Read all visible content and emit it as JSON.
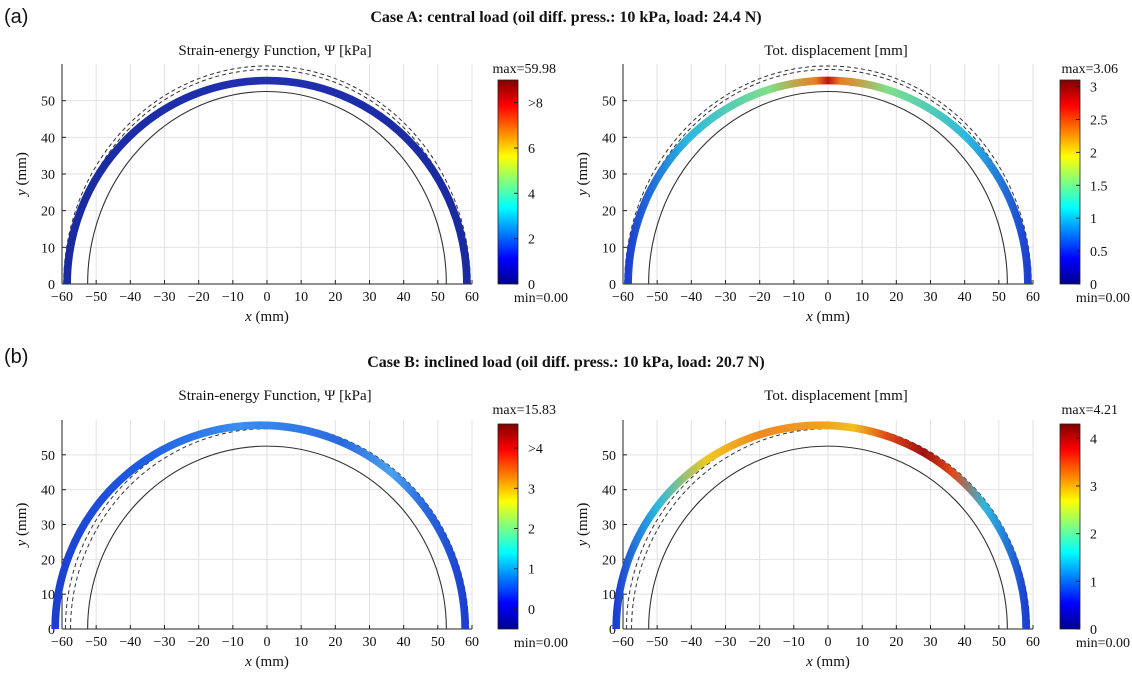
{
  "figure": {
    "label_a": "(a)",
    "label_b": "(b)",
    "case_a_title": "Case A: central load (oil diff. press.: 10 kPa, load: 24.4 N)",
    "case_b_title": "Case B: inclined load (oil diff. press.: 10 kPa, load: 20.7 N)"
  },
  "chart_data": [
    {
      "type": "contour-plot",
      "case": "A",
      "title": "Strain-energy Function, Ψ [kPa]",
      "xlabel": "x (mm)",
      "ylabel": "y (mm)",
      "xlim": [
        -60,
        60
      ],
      "ylim": [
        0,
        60
      ],
      "xticks": [
        -60,
        -50,
        -40,
        -30,
        -20,
        -10,
        0,
        10,
        20,
        30,
        40,
        50,
        60
      ],
      "yticks": [
        0,
        10,
        20,
        30,
        40,
        50
      ],
      "grid": true,
      "colorbar": {
        "ticks": [
          0,
          2,
          4,
          6,
          "≥8"
        ],
        "tick_labels": [
          "0",
          "2",
          "4",
          "6",
          ">8"
        ],
        "range": [
          0,
          9
        ],
        "max_label": "max=59.98",
        "min_label": "min=0.00"
      },
      "field_color_stops": [
        [
          0,
          "#1a2aa0"
        ],
        [
          0.5,
          "#2030b0"
        ],
        [
          1,
          "#1a2aa0"
        ]
      ],
      "inner_radius": 52.5,
      "outer_dashed_radii": [
        58.5,
        59.5
      ],
      "deformed_shape": {
        "center_x": 0,
        "rx": 58.5,
        "ry": 55.5,
        "thickness": 1.8
      }
    },
    {
      "type": "contour-plot",
      "case": "A",
      "title": "Tot. displacement [mm]",
      "xlabel": "x (mm)",
      "ylabel": "y (mm)",
      "xlim": [
        -60,
        60
      ],
      "ylim": [
        0,
        60
      ],
      "xticks": [
        -60,
        -50,
        -40,
        -30,
        -20,
        -10,
        0,
        10,
        20,
        30,
        40,
        50,
        60
      ],
      "yticks": [
        0,
        10,
        20,
        30,
        40,
        50
      ],
      "grid": true,
      "colorbar": {
        "ticks": [
          0,
          0.5,
          1,
          1.5,
          2,
          2.5,
          3
        ],
        "tick_labels": [
          "0",
          "0.5",
          "1",
          "1.5",
          "2",
          "2.5",
          "3"
        ],
        "range": [
          0,
          3.1
        ],
        "max_label": "max=3.06",
        "min_label": "min=0.00"
      },
      "field_color_stops": [
        [
          0,
          "#1d3fd0"
        ],
        [
          0.15,
          "#2bb8e0"
        ],
        [
          0.35,
          "#7ee08a"
        ],
        [
          0.47,
          "#f07a20"
        ],
        [
          0.5,
          "#c21212"
        ],
        [
          0.53,
          "#f07a20"
        ],
        [
          0.65,
          "#7ee08a"
        ],
        [
          0.85,
          "#2bb8e0"
        ],
        [
          1,
          "#1d3fd0"
        ]
      ],
      "inner_radius": 52.5,
      "outer_dashed_radii": [
        58.5,
        59.5
      ],
      "deformed_shape": {
        "center_x": 0,
        "rx": 58.5,
        "ry": 55.5,
        "thickness": 1.8
      }
    },
    {
      "type": "contour-plot",
      "case": "B",
      "title": "Strain-energy Function, Ψ [kPa]",
      "xlabel": "x (mm)",
      "ylabel": "y (mm)",
      "xlim": [
        -60,
        60
      ],
      "ylim": [
        0,
        60
      ],
      "xticks": [
        -60,
        -50,
        -40,
        -30,
        -20,
        -10,
        0,
        10,
        20,
        30,
        40,
        50,
        60
      ],
      "yticks": [
        0,
        10,
        20,
        30,
        40,
        50
      ],
      "grid": true,
      "colorbar": {
        "ticks": [
          0,
          1,
          2,
          3,
          "≥4"
        ],
        "tick_labels": [
          "0",
          "1",
          "2",
          "3",
          ">4"
        ],
        "range": [
          -0.5,
          4.6
        ],
        "max_label": "max=15.83",
        "min_label": "min=0.00"
      },
      "field_color_stops": [
        [
          0,
          "#1d3fd0"
        ],
        [
          0.2,
          "#1d5be0"
        ],
        [
          0.45,
          "#3a8ef0"
        ],
        [
          0.7,
          "#2a6ae0"
        ],
        [
          0.82,
          "#4aa0f0"
        ],
        [
          0.9,
          "#2a6ae0"
        ],
        [
          1,
          "#1d3fd0"
        ]
      ],
      "inner_radius": 52.5,
      "outer_dashed_radii": [
        57.5,
        59.0
      ],
      "deformed_shape": {
        "center_x": -2,
        "rx": 60,
        "ry": 58.5,
        "thickness": 1.8
      }
    },
    {
      "type": "contour-plot",
      "case": "B",
      "title": "Tot. displacement [mm]",
      "xlabel": "x (mm)",
      "ylabel": "y (mm)",
      "xlim": [
        -60,
        60
      ],
      "ylim": [
        0,
        60
      ],
      "xticks": [
        -60,
        -50,
        -40,
        -30,
        -20,
        -10,
        0,
        10,
        20,
        30,
        40,
        50,
        60
      ],
      "yticks": [
        0,
        10,
        20,
        30,
        40,
        50
      ],
      "grid": true,
      "colorbar": {
        "ticks": [
          0,
          1,
          2,
          3,
          4
        ],
        "tick_labels": [
          "0",
          "1",
          "2",
          "3",
          "4"
        ],
        "range": [
          0,
          4.3
        ],
        "max_label": "max=4.21",
        "min_label": "min=0.00"
      },
      "field_color_stops": [
        [
          0,
          "#1d3fd0"
        ],
        [
          0.1,
          "#2bb8e0"
        ],
        [
          0.22,
          "#f0c820"
        ],
        [
          0.35,
          "#ee8a20"
        ],
        [
          0.5,
          "#f0a020"
        ],
        [
          0.58,
          "#f0c020"
        ],
        [
          0.66,
          "#e04a18"
        ],
        [
          0.75,
          "#a01010"
        ],
        [
          0.82,
          "#e04a18"
        ],
        [
          0.9,
          "#2bb8e0"
        ],
        [
          1,
          "#1d3fd0"
        ]
      ],
      "inner_radius": 52.5,
      "outer_dashed_radii": [
        57.5,
        59.0
      ],
      "deformed_shape": {
        "center_x": -2,
        "rx": 60,
        "ry": 58.5,
        "thickness": 1.8
      }
    }
  ],
  "colormap": [
    "#00008f",
    "#0000ff",
    "#007fff",
    "#00ffff",
    "#7fff7f",
    "#ffff00",
    "#ff7f00",
    "#ff0000",
    "#7f0000"
  ]
}
